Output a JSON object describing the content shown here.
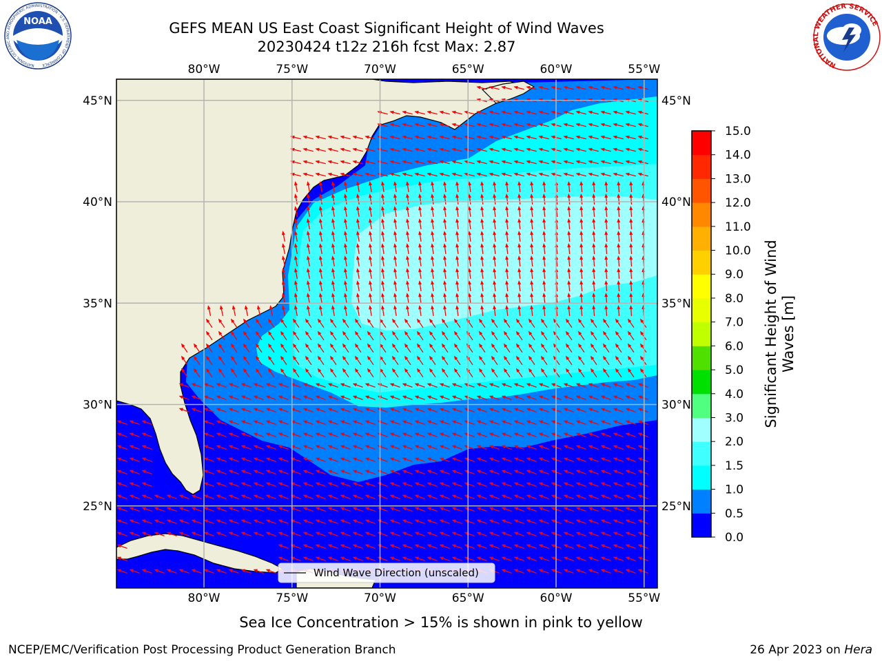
{
  "header": {
    "title_line1": "GEFS MEAN US East Coast Significant Height of Wind Waves",
    "title_line2": "20230424 t12z 216h fcst   Max: 2.87",
    "left_logo_text": "NOAA",
    "left_logo_ring": "NATIONAL OCEANIC AND ATMOSPHERIC ADMINISTRATION · U.S. DEPARTMENT OF COMMERCE",
    "right_logo_ring": "NATIONAL WEATHER SERVICE"
  },
  "map": {
    "lon_labels": [
      "80°W",
      "75°W",
      "70°W",
      "65°W",
      "60°W",
      "55°W"
    ],
    "lat_labels": [
      "45°N",
      "40°N",
      "35°N",
      "30°N",
      "25°N"
    ],
    "legend_label": "Wind Wave Direction (unscaled)",
    "colors": {
      "land": "#efeedb",
      "grid": "#b3b3b3",
      "arrow": "#ff0000",
      "coast": "#000000"
    }
  },
  "colorbar": {
    "label": "Significant Height of Wind Waves [m]",
    "tick_labels": [
      "0.0",
      "0.5",
      "1.0",
      "1.5",
      "2.0",
      "3.0",
      "4.0",
      "5.0",
      "6.0",
      "7.0",
      "8.0",
      "9.0",
      "10.0",
      "11.0",
      "12.0",
      "13.0",
      "14.0",
      "15.0"
    ],
    "colors": [
      "#0000ff",
      "#0080ff",
      "#00ffff",
      "#40ffff",
      "#a0ffff",
      "#50ff80",
      "#00e000",
      "#50e000",
      "#c0ff00",
      "#e8ff00",
      "#ffff00",
      "#ffd000",
      "#ffb000",
      "#ff8800",
      "#ff5500",
      "#ff2800",
      "#ff0000"
    ]
  },
  "chart_data": {
    "type": "heatmap",
    "title": "GEFS MEAN US East Coast Significant Height of Wind Waves",
    "subtitle": "20230424 t12z 216h fcst   Max: 2.87",
    "variable": "Significant Height of Wind Waves [m]",
    "max": 2.87,
    "lon_range": [
      -85,
      -54
    ],
    "lat_range": [
      20.5,
      46
    ],
    "levels": [
      0.0,
      0.5,
      1.0,
      1.5,
      2.0,
      3.0,
      4.0,
      5.0,
      6.0,
      7.0,
      8.0,
      9.0,
      10.0,
      11.0,
      12.0,
      13.0,
      14.0,
      15.0
    ],
    "overlay": "Wind Wave Direction (unscaled)",
    "grid": true
  },
  "footer": {
    "note": "Sea Ice Concentration > 15% is shown in pink to yellow",
    "left": "NCEP/EMC/Verification Post Processing Product Generation Branch",
    "right_prefix": "26 Apr 2023 on ",
    "right_italic": "Hera"
  }
}
